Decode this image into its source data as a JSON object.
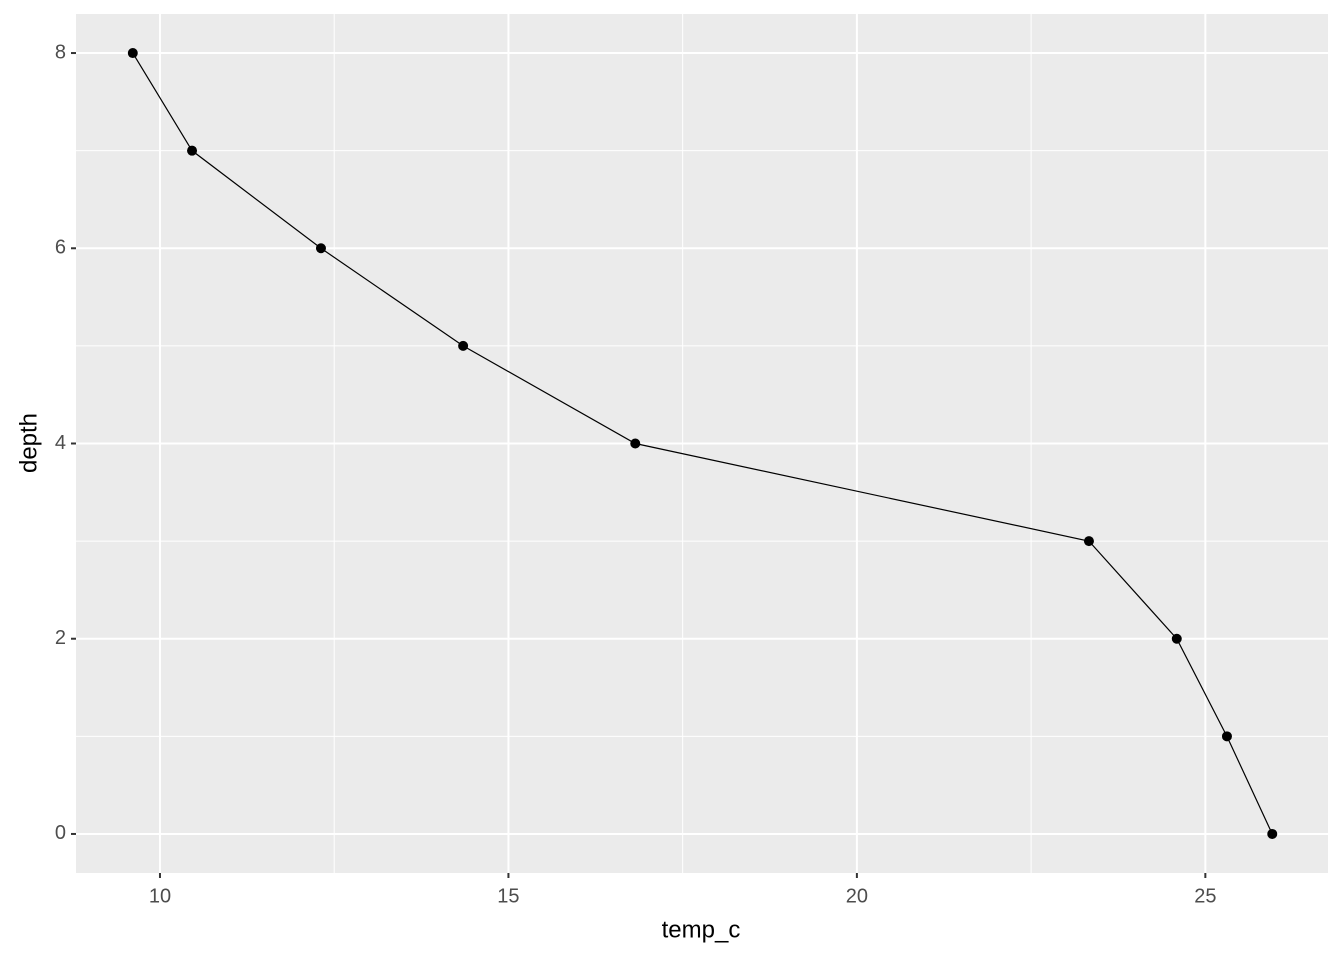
{
  "chart_data": {
    "type": "line",
    "x_label": "temp_c",
    "y_label": "depth",
    "x": [
      9.61,
      10.46,
      12.31,
      14.35,
      16.82,
      23.33,
      24.59,
      25.31,
      25.96
    ],
    "values": [
      8,
      7,
      6,
      5,
      4,
      3,
      2,
      1,
      0
    ],
    "color": "#000000",
    "panel_color": "#ebebeb",
    "grid": true,
    "points": true,
    "xlim": [
      8.795,
      26.76
    ],
    "ylim": [
      -0.4,
      8.4
    ],
    "xticks": [
      10,
      15,
      20,
      25
    ],
    "yticks": [
      0,
      2,
      4,
      6,
      8
    ],
    "x_minor_grid": [
      12.5,
      17.5,
      22.5
    ],
    "y_minor_grid": [
      1,
      3,
      5,
      7
    ]
  }
}
